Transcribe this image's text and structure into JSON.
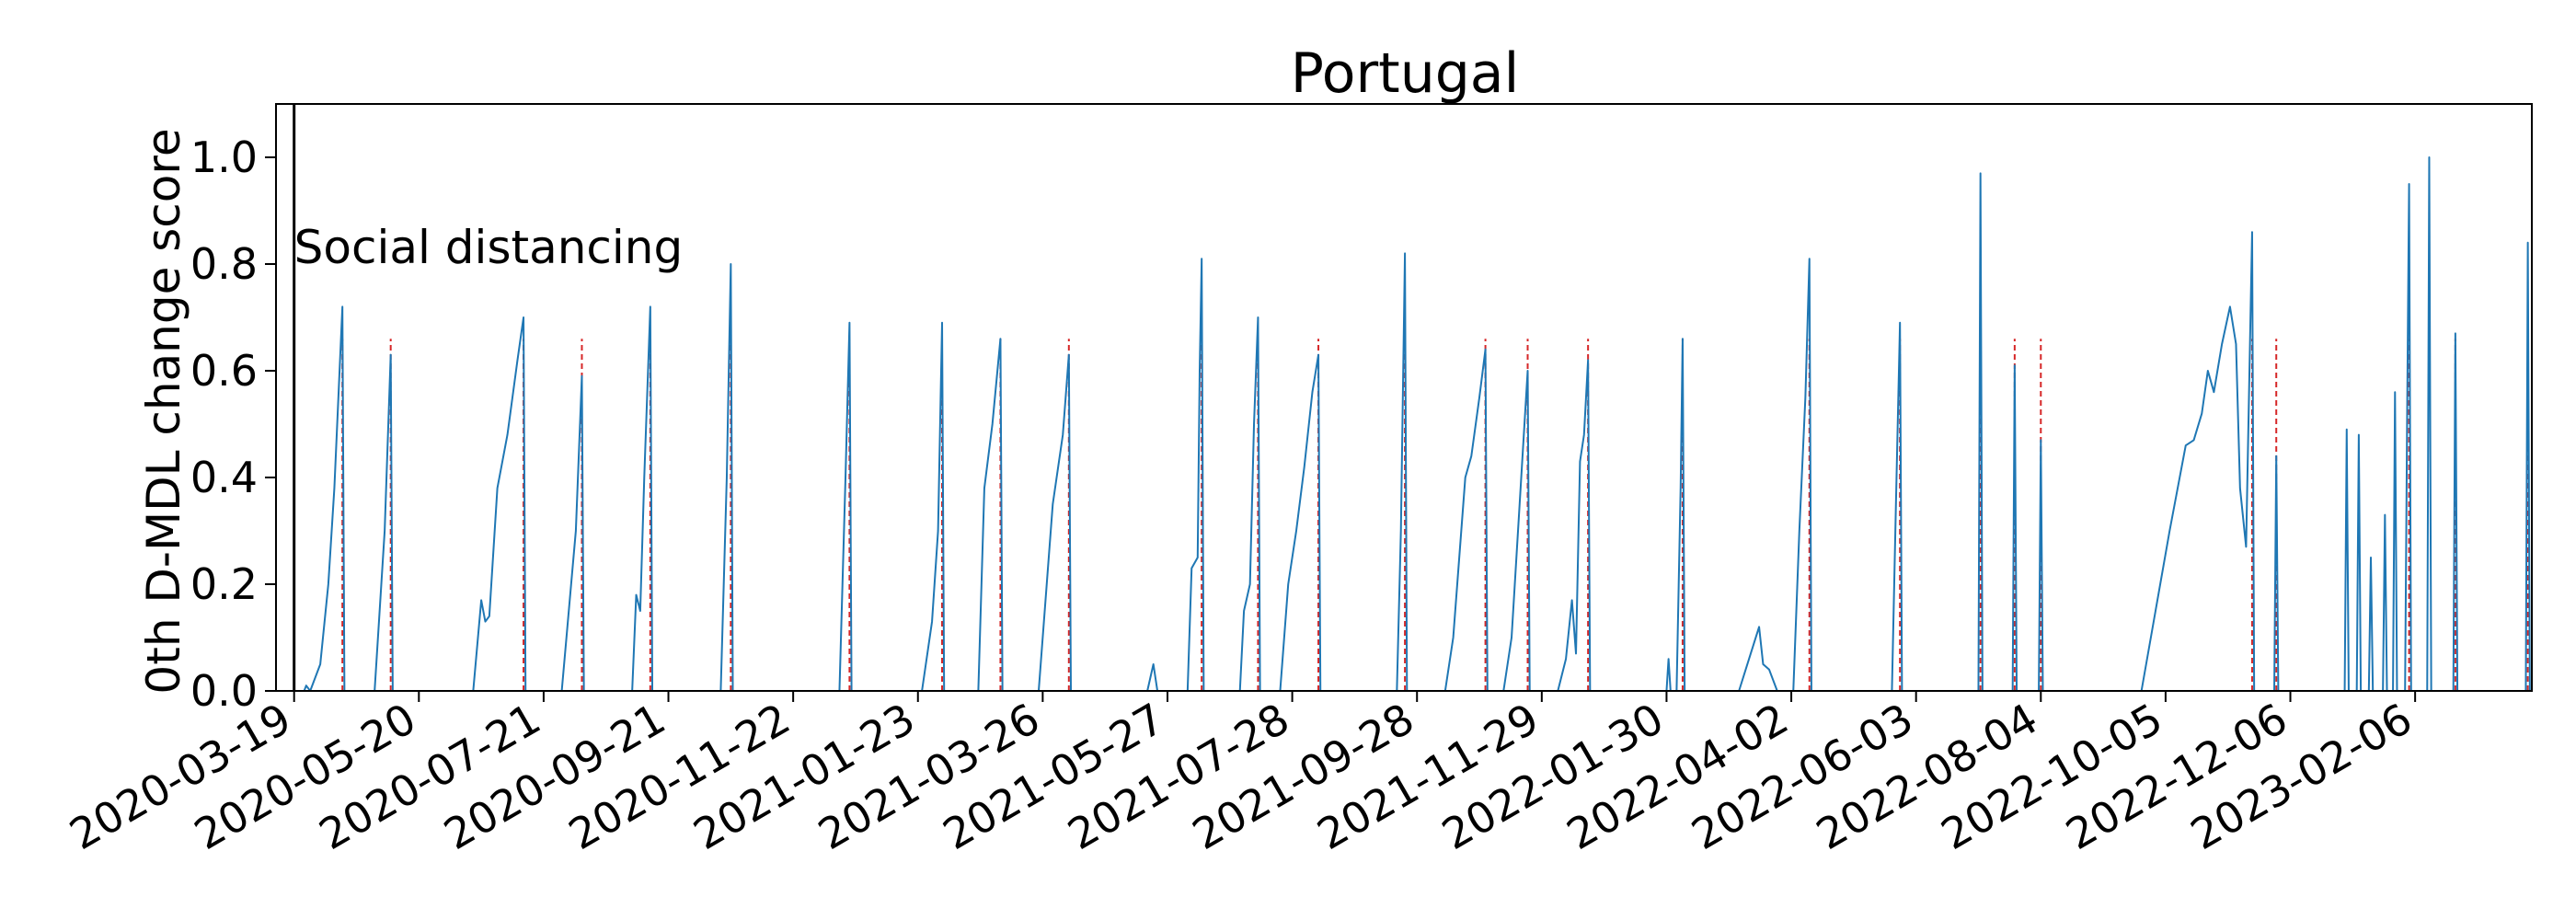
{
  "chart_data": {
    "type": "line",
    "title": "Portugal",
    "xlabel": "",
    "ylabel": "0th D-MDL change score",
    "xlim": [
      "2020-03-10",
      "2023-04-05"
    ],
    "ylim": [
      0,
      1.1
    ],
    "y_ticks": [
      0.0,
      0.2,
      0.4,
      0.6,
      0.8,
      1.0
    ],
    "x_ticks": [
      "2020-03-19",
      "2020-05-20",
      "2020-07-21",
      "2020-09-21",
      "2020-11-22",
      "2021-01-23",
      "2021-03-26",
      "2021-05-27",
      "2021-07-28",
      "2021-09-28",
      "2021-11-29",
      "2022-01-30",
      "2022-04-02",
      "2022-06-03",
      "2022-08-04",
      "2022-10-05",
      "2022-12-06",
      "2023-02-06"
    ],
    "grid": false,
    "colors": {
      "series": "#1f77b4",
      "change_points": "#d62728",
      "event_line": "#000000"
    },
    "event": {
      "date": "2020-03-19",
      "label": "Social distancing"
    },
    "series": [
      {
        "points": [
          [
            "2020-03-19",
            0
          ],
          [
            "2020-03-24",
            0
          ],
          [
            "2020-03-25",
            0.01
          ],
          [
            "2020-03-27",
            0.0
          ],
          [
            "2020-04-01",
            0.05
          ],
          [
            "2020-04-05",
            0.2
          ],
          [
            "2020-04-08",
            0.38
          ],
          [
            "2020-04-10",
            0.55
          ],
          [
            "2020-04-12",
            0.72
          ],
          [
            "2020-04-13",
            0.0
          ],
          [
            "2020-04-28",
            0.0
          ],
          [
            "2020-05-03",
            0.3
          ],
          [
            "2020-05-06",
            0.63
          ],
          [
            "2020-05-07",
            0.0
          ],
          [
            "2020-06-16",
            0.0
          ],
          [
            "2020-06-20",
            0.17
          ],
          [
            "2020-06-22",
            0.13
          ],
          [
            "2020-06-24",
            0.14
          ],
          [
            "2020-06-28",
            0.38
          ],
          [
            "2020-07-03",
            0.48
          ],
          [
            "2020-07-08",
            0.62
          ],
          [
            "2020-07-11",
            0.7
          ],
          [
            "2020-07-12",
            0.0
          ],
          [
            "2020-07-30",
            0.0
          ],
          [
            "2020-08-06",
            0.3
          ],
          [
            "2020-08-09",
            0.59
          ],
          [
            "2020-08-10",
            0.0
          ],
          [
            "2020-09-03",
            0.0
          ],
          [
            "2020-09-05",
            0.18
          ],
          [
            "2020-09-07",
            0.15
          ],
          [
            "2020-09-09",
            0.4
          ],
          [
            "2020-09-12",
            0.72
          ],
          [
            "2020-09-13",
            0.0
          ],
          [
            "2020-10-17",
            0.0
          ],
          [
            "2020-10-20",
            0.4
          ],
          [
            "2020-10-22",
            0.8
          ],
          [
            "2020-10-23",
            0.0
          ],
          [
            "2020-12-15",
            0.0
          ],
          [
            "2020-12-18",
            0.4
          ],
          [
            "2020-12-20",
            0.69
          ],
          [
            "2020-12-21",
            0.0
          ],
          [
            "2021-01-25",
            0.0
          ],
          [
            "2021-01-30",
            0.13
          ],
          [
            "2021-02-02",
            0.3
          ],
          [
            "2021-02-04",
            0.69
          ],
          [
            "2021-02-05",
            0.0
          ],
          [
            "2021-02-22",
            0.0
          ],
          [
            "2021-02-25",
            0.38
          ],
          [
            "2021-03-01",
            0.5
          ],
          [
            "2021-03-05",
            0.66
          ],
          [
            "2021-03-06",
            0.0
          ],
          [
            "2021-03-24",
            0.0
          ],
          [
            "2021-03-31",
            0.35
          ],
          [
            "2021-04-05",
            0.48
          ],
          [
            "2021-04-08",
            0.63
          ],
          [
            "2021-04-09",
            0.0
          ],
          [
            "2021-05-17",
            0.0
          ],
          [
            "2021-05-20",
            0.05
          ],
          [
            "2021-05-22",
            0.0
          ],
          [
            "2021-06-06",
            0.0
          ],
          [
            "2021-06-08",
            0.23
          ],
          [
            "2021-06-11",
            0.25
          ],
          [
            "2021-06-12",
            0.6
          ],
          [
            "2021-06-13",
            0.81
          ],
          [
            "2021-06-14",
            0.0
          ],
          [
            "2021-07-02",
            0.0
          ],
          [
            "2021-07-04",
            0.15
          ],
          [
            "2021-07-07",
            0.2
          ],
          [
            "2021-07-09",
            0.5
          ],
          [
            "2021-07-11",
            0.7
          ],
          [
            "2021-07-12",
            0.0
          ],
          [
            "2021-07-22",
            0.0
          ],
          [
            "2021-07-26",
            0.2
          ],
          [
            "2021-07-30",
            0.3
          ],
          [
            "2021-08-03",
            0.42
          ],
          [
            "2021-08-07",
            0.56
          ],
          [
            "2021-08-10",
            0.63
          ],
          [
            "2021-08-11",
            0.0
          ],
          [
            "2021-09-18",
            0.0
          ],
          [
            "2021-09-20",
            0.3
          ],
          [
            "2021-09-22",
            0.82
          ],
          [
            "2021-09-23",
            0.0
          ],
          [
            "2021-10-12",
            0.0
          ],
          [
            "2021-10-16",
            0.1
          ],
          [
            "2021-10-20",
            0.3
          ],
          [
            "2021-10-22",
            0.4
          ],
          [
            "2021-10-25",
            0.44
          ],
          [
            "2021-10-29",
            0.55
          ],
          [
            "2021-11-01",
            0.64
          ],
          [
            "2021-11-02",
            0.0
          ],
          [
            "2021-11-10",
            0.0
          ],
          [
            "2021-11-14",
            0.1
          ],
          [
            "2021-11-18",
            0.35
          ],
          [
            "2021-11-22",
            0.6
          ],
          [
            "2021-11-23",
            0.0
          ],
          [
            "2021-12-07",
            0.0
          ],
          [
            "2021-12-11",
            0.06
          ],
          [
            "2021-12-14",
            0.17
          ],
          [
            "2021-12-16",
            0.07
          ],
          [
            "2021-12-18",
            0.43
          ],
          [
            "2021-12-20",
            0.48
          ],
          [
            "2021-12-22",
            0.62
          ],
          [
            "2021-12-23",
            0.0
          ],
          [
            "2022-01-30",
            0.0
          ],
          [
            "2022-01-31",
            0.06
          ],
          [
            "2022-02-01",
            0.0
          ],
          [
            "2022-02-04",
            0.0
          ],
          [
            "2022-02-06",
            0.38
          ],
          [
            "2022-02-07",
            0.66
          ],
          [
            "2022-02-08",
            0.0
          ],
          [
            "2022-03-07",
            0.0
          ],
          [
            "2022-03-12",
            0.06
          ],
          [
            "2022-03-17",
            0.12
          ],
          [
            "2022-03-19",
            0.05
          ],
          [
            "2022-03-22",
            0.04
          ],
          [
            "2022-03-26",
            0.0
          ],
          [
            "2022-04-03",
            0.0
          ],
          [
            "2022-04-06",
            0.3
          ],
          [
            "2022-04-09",
            0.55
          ],
          [
            "2022-04-11",
            0.81
          ],
          [
            "2022-04-12",
            0.0
          ],
          [
            "2022-05-22",
            0.0
          ],
          [
            "2022-05-24",
            0.35
          ],
          [
            "2022-05-26",
            0.69
          ],
          [
            "2022-05-27",
            0.0
          ],
          [
            "2022-07-04",
            0.0
          ],
          [
            "2022-07-05",
            0.97
          ],
          [
            "2022-07-06",
            0.0
          ],
          [
            "2022-07-21",
            0.0
          ],
          [
            "2022-07-22",
            0.61
          ],
          [
            "2022-07-23",
            0.0
          ],
          [
            "2022-08-03",
            0.0
          ],
          [
            "2022-08-04",
            0.47
          ],
          [
            "2022-08-05",
            0.0
          ],
          [
            "2022-09-23",
            0.0
          ],
          [
            "2022-09-30",
            0.15
          ],
          [
            "2022-10-07",
            0.3
          ],
          [
            "2022-10-12",
            0.4
          ],
          [
            "2022-10-15",
            0.46
          ],
          [
            "2022-10-19",
            0.47
          ],
          [
            "2022-10-23",
            0.52
          ],
          [
            "2022-10-26",
            0.6
          ],
          [
            "2022-10-29",
            0.56
          ],
          [
            "2022-11-02",
            0.65
          ],
          [
            "2022-11-06",
            0.72
          ],
          [
            "2022-11-09",
            0.65
          ],
          [
            "2022-11-11",
            0.38
          ],
          [
            "2022-11-14",
            0.27
          ],
          [
            "2022-11-17",
            0.86
          ],
          [
            "2022-11-18",
            0.0
          ],
          [
            "2022-11-28",
            0.0
          ],
          [
            "2022-11-29",
            0.44
          ],
          [
            "2022-11-30",
            0.0
          ],
          [
            "2023-01-02",
            0.0
          ],
          [
            "2023-01-03",
            0.49
          ],
          [
            "2023-01-04",
            0.0
          ],
          [
            "2023-01-08",
            0.0
          ],
          [
            "2023-01-09",
            0.48
          ],
          [
            "2023-01-10",
            0.0
          ],
          [
            "2023-01-14",
            0.0
          ],
          [
            "2023-01-15",
            0.25
          ],
          [
            "2023-01-16",
            0.0
          ],
          [
            "2023-01-21",
            0.0
          ],
          [
            "2023-01-22",
            0.33
          ],
          [
            "2023-01-23",
            0.0
          ],
          [
            "2023-01-26",
            0.0
          ],
          [
            "2023-01-27",
            0.56
          ],
          [
            "2023-01-28",
            0.0
          ],
          [
            "2023-02-01",
            0.0
          ],
          [
            "2023-02-02",
            0.5
          ],
          [
            "2023-02-03",
            0.95
          ],
          [
            "2023-02-04",
            0.0
          ],
          [
            "2023-02-12",
            0.0
          ],
          [
            "2023-02-13",
            1.0
          ],
          [
            "2023-02-14",
            0.0
          ],
          [
            "2023-02-25",
            0.0
          ],
          [
            "2023-02-26",
            0.67
          ],
          [
            "2023-02-27",
            0.0
          ],
          [
            "2023-04-02",
            0.0
          ],
          [
            "2023-04-03",
            0.84
          ],
          [
            "2023-04-04",
            0.0
          ]
        ]
      }
    ],
    "change_points": [
      "2020-04-12",
      "2020-05-06",
      "2020-07-11",
      "2020-08-09",
      "2020-09-12",
      "2020-10-22",
      "2020-12-20",
      "2021-02-04",
      "2021-03-05",
      "2021-04-08",
      "2021-06-13",
      "2021-07-11",
      "2021-08-10",
      "2021-09-22",
      "2021-11-01",
      "2021-11-22",
      "2021-12-22",
      "2022-02-07",
      "2022-04-11",
      "2022-05-26",
      "2022-07-05",
      "2022-07-22",
      "2022-08-04",
      "2022-11-17",
      "2022-11-29",
      "2023-02-03",
      "2023-02-26",
      "2023-04-03"
    ]
  }
}
